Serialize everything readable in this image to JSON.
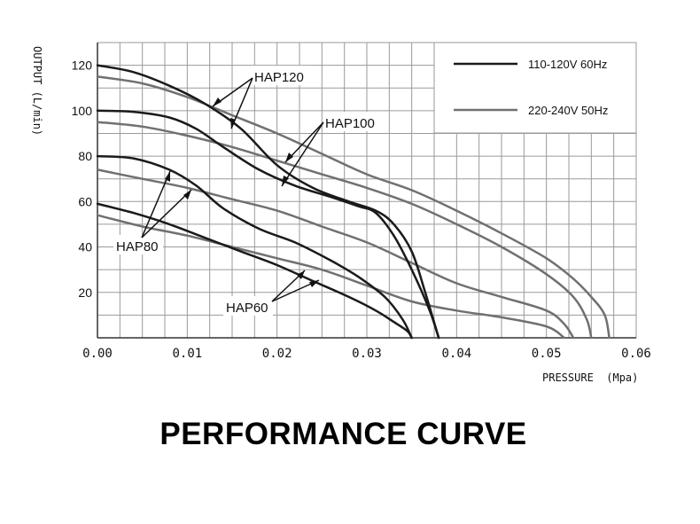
{
  "caption": "PERFORMANCE CURVE",
  "colors": {
    "series_60hz": "#1a1a1a",
    "series_50hz": "#707070",
    "grid": "#9a9a9a",
    "axis": "#333333"
  },
  "chart_data": {
    "type": "line",
    "title": "",
    "xlabel": "PRESSURE  (Mpa)",
    "ylabel": "OUTPUT (L/min)",
    "xlim": [
      0,
      0.06
    ],
    "ylim": [
      0,
      130
    ],
    "x_ticks": [
      "0.00",
      "0.01",
      "0.02",
      "0.03",
      "0.04",
      "0.05",
      "0.06"
    ],
    "y_ticks": [
      "20",
      "40",
      "60",
      "80",
      "100",
      "120"
    ],
    "grid": true,
    "legend_position": "top-right",
    "legend": [
      {
        "label": "110-120V 60Hz",
        "color": "#1a1a1a"
      },
      {
        "label": "220-240V 50Hz",
        "color": "#707070"
      }
    ],
    "annotations": [
      "HAP120",
      "HAP100",
      "HAP80",
      "HAP60"
    ],
    "series": [
      {
        "model": "HAP120",
        "legend": "110-120V 60Hz",
        "color": "#1a1a1a",
        "x": [
          0,
          0.004,
          0.008,
          0.012,
          0.016,
          0.02,
          0.024,
          0.028,
          0.031,
          0.033,
          0.035,
          0.0365,
          0.038
        ],
        "y": [
          120,
          117,
          111,
          103,
          92,
          76,
          66,
          60,
          56,
          50,
          38,
          20,
          0
        ]
      },
      {
        "model": "HAP120",
        "legend": "220-240V 50Hz",
        "color": "#707070",
        "x": [
          0,
          0.005,
          0.01,
          0.015,
          0.02,
          0.025,
          0.03,
          0.035,
          0.04,
          0.045,
          0.05,
          0.053,
          0.055,
          0.0565,
          0.057
        ],
        "y": [
          115,
          112,
          106,
          98,
          90,
          81,
          72,
          65,
          56,
          46,
          35,
          26,
          18,
          10,
          0
        ]
      },
      {
        "model": "HAP100",
        "legend": "110-120V 60Hz",
        "color": "#1a1a1a",
        "x": [
          0,
          0.004,
          0.008,
          0.011,
          0.014,
          0.018,
          0.022,
          0.026,
          0.029,
          0.031,
          0.033,
          0.035,
          0.037,
          0.038
        ],
        "y": [
          100,
          99.5,
          97,
          92,
          84,
          74,
          67,
          62,
          58,
          55,
          45,
          30,
          12,
          0
        ]
      },
      {
        "model": "HAP100",
        "legend": "220-240V 50Hz",
        "color": "#707070",
        "x": [
          0,
          0.005,
          0.01,
          0.015,
          0.02,
          0.025,
          0.03,
          0.035,
          0.04,
          0.045,
          0.05,
          0.053,
          0.0545,
          0.055
        ],
        "y": [
          95,
          93,
          89,
          84,
          78,
          72,
          66,
          59,
          50,
          40,
          28,
          18,
          8,
          0
        ]
      },
      {
        "model": "HAP80",
        "legend": "110-120V 60Hz",
        "color": "#1a1a1a",
        "x": [
          0,
          0.004,
          0.008,
          0.011,
          0.014,
          0.018,
          0.022,
          0.026,
          0.029,
          0.032,
          0.034,
          0.035
        ],
        "y": [
          80,
          79,
          74,
          67,
          57,
          48,
          42,
          34,
          27,
          18,
          8,
          0
        ]
      },
      {
        "model": "HAP80",
        "legend": "220-240V 50Hz",
        "color": "#707070",
        "x": [
          0,
          0.005,
          0.01,
          0.015,
          0.02,
          0.025,
          0.03,
          0.035,
          0.04,
          0.045,
          0.05,
          0.052,
          0.053
        ],
        "y": [
          74,
          70,
          66,
          61,
          56,
          49,
          42,
          33,
          24,
          18,
          12,
          6,
          0
        ]
      },
      {
        "model": "HAP60",
        "legend": "110-120V 60Hz",
        "color": "#1a1a1a",
        "x": [
          0,
          0.004,
          0.008,
          0.012,
          0.016,
          0.02,
          0.024,
          0.028,
          0.031,
          0.033,
          0.0345,
          0.035
        ],
        "y": [
          59,
          55,
          50,
          44,
          38,
          32,
          25,
          18,
          12,
          7,
          3,
          0
        ]
      },
      {
        "model": "HAP60",
        "legend": "220-240V 50Hz",
        "color": "#707070",
        "x": [
          0,
          0.005,
          0.01,
          0.015,
          0.02,
          0.025,
          0.03,
          0.035,
          0.04,
          0.045,
          0.05,
          0.052
        ],
        "y": [
          54,
          49,
          45,
          40,
          35,
          30,
          23,
          16,
          12,
          9,
          5,
          0
        ]
      }
    ]
  }
}
